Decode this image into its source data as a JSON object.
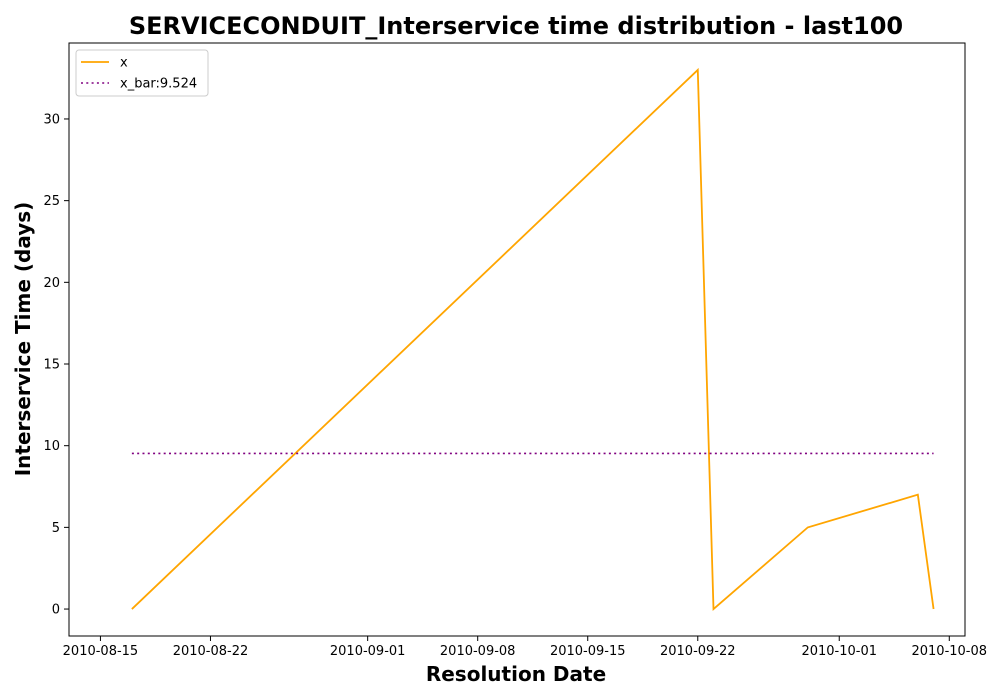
{
  "chart_data": {
    "type": "line",
    "title": "SERVICECONDUIT_Interservice time distribution - last100",
    "xlabel": "Resolution Date",
    "ylabel": "Interservice Time (days)",
    "x_axis": "date",
    "xlim": [
      "2010-08-13",
      "2010-10-09"
    ],
    "ylim": [
      -1.65,
      34.65
    ],
    "xticks": [
      "2010-08-15",
      "2010-08-22",
      "2010-09-01",
      "2010-09-08",
      "2010-09-15",
      "2010-09-22",
      "2010-10-01",
      "2010-10-08"
    ],
    "yticks": [
      0,
      5,
      10,
      15,
      20,
      25,
      30
    ],
    "grid": false,
    "legend_position": "top-left",
    "series": [
      {
        "name": "x",
        "color": "#FFA500",
        "style": "solid",
        "points": [
          {
            "x": "2010-08-17",
            "y": 0
          },
          {
            "x": "2010-09-22",
            "y": 33
          },
          {
            "x": "2010-09-23",
            "y": 0
          },
          {
            "x": "2010-09-29",
            "y": 5
          },
          {
            "x": "2010-10-06",
            "y": 7
          },
          {
            "x": "2010-10-07",
            "y": 0
          }
        ]
      },
      {
        "name": "x_bar:9.524",
        "color": "#800080",
        "style": "dotted",
        "points": [
          {
            "x": "2010-08-17",
            "y": 9.524
          },
          {
            "x": "2010-10-07",
            "y": 9.524
          }
        ]
      }
    ]
  }
}
